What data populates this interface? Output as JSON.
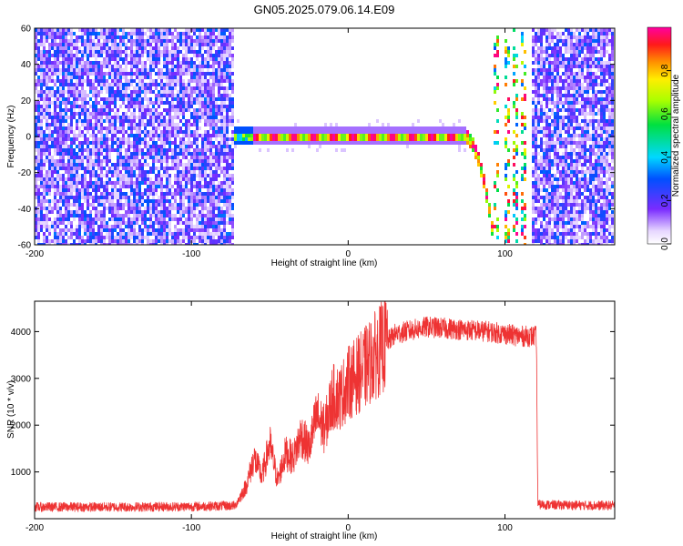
{
  "title": "GN05.2025.079.06.14.E09",
  "colors": {
    "snr_line": "#ee3333",
    "axis": "#000000"
  },
  "chart_data": [
    {
      "type": "heatmap",
      "name": "spectrogram",
      "xlabel": "Height of straight line (km)",
      "ylabel": "Frequency (Hz)",
      "xlim": [
        -200,
        170
      ],
      "ylim": [
        -60,
        60
      ],
      "x_ticks": [
        -200,
        -100,
        0,
        100
      ],
      "y_ticks": [
        -60,
        -40,
        -20,
        0,
        20,
        40,
        60
      ],
      "colorbar": {
        "label": "Normalized spectral amplitude",
        "range": [
          0,
          1
        ],
        "ticks": [
          0.0,
          0.2,
          0.4,
          0.6,
          0.8
        ],
        "colormap": "rainbow-white-to-magenta"
      },
      "features": [
        {
          "kind": "noise",
          "x_range": [
            -200,
            -73
          ],
          "level": 0.25
        },
        {
          "kind": "noise",
          "x_range": [
            118,
            170
          ],
          "level": 0.25
        },
        {
          "kind": "carrier",
          "x_range": [
            -73,
            75
          ],
          "freq": 0
        },
        {
          "kind": "carrier_bend",
          "x": [
            75,
            80,
            84,
            88,
            91,
            93
          ],
          "freq": [
            0,
            -5,
            -15,
            -30,
            -45,
            -60
          ]
        },
        {
          "kind": "aliased_tracks",
          "x": [
            95,
            101,
            107,
            112
          ],
          "freq_range": [
            -60,
            60
          ]
        }
      ]
    },
    {
      "type": "line",
      "name": "snr",
      "xlabel": "Height of straight line (km)",
      "ylabel": "SNR (10 * v/v)",
      "xlim": [
        -200,
        170
      ],
      "ylim": [
        0,
        4650
      ],
      "x_ticks": [
        -200,
        -100,
        0,
        100
      ],
      "y_ticks": [
        1000,
        2000,
        3000,
        4000
      ],
      "series": [
        {
          "x": [
            -200,
            -150,
            -100,
            -72,
            -65,
            -60,
            -55,
            -50,
            -45,
            -40,
            -35,
            -30,
            -25,
            -20,
            -15,
            -10,
            -5,
            0,
            10,
            20,
            30,
            50,
            70,
            90,
            110,
            120,
            121,
            140,
            170
          ],
          "y": [
            250,
            250,
            260,
            280,
            700,
            1300,
            900,
            1600,
            800,
            1400,
            1300,
            1800,
            1500,
            2200,
            1900,
            2600,
            2600,
            2900,
            3200,
            3600,
            3950,
            4100,
            4050,
            4000,
            3900,
            3900,
            300,
            290,
            280
          ]
        }
      ]
    }
  ]
}
